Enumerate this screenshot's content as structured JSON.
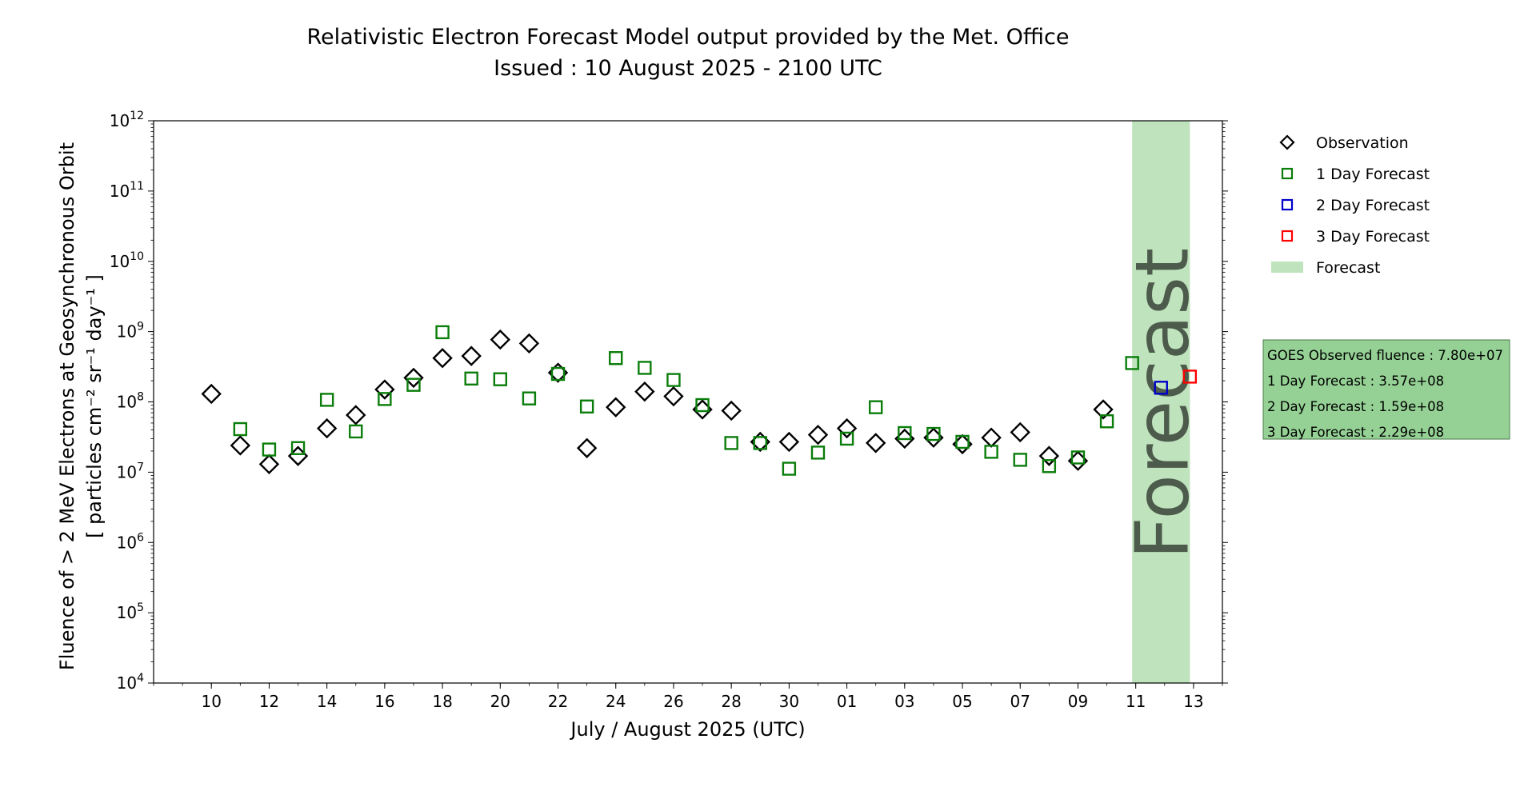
{
  "chart_data": {
    "type": "scatter",
    "title_lines": [
      "Relativistic Electron Forecast Model output provided by the Met. Office",
      "Issued : 10 August 2025 - 2100 UTC"
    ],
    "xlabel": "July / August 2025 (UTC)",
    "ylabel_line1": "Fluence of > 2 MeV Electrons at Geosynchronous Orbit",
    "ylabel_line2": "[ particles cm⁻² sr⁻¹ day⁻¹ ]",
    "y_scale": "log",
    "ylim": [
      10000.0,
      1000000000000.0
    ],
    "y_tick_exponents": [
      4,
      5,
      6,
      7,
      8,
      9,
      10,
      11,
      12
    ],
    "y_tick_base": "10",
    "xlim": [
      "2025-07-08",
      "2025-08-14"
    ],
    "x_ticks": [
      {
        "date": "2025-07-10",
        "label": "10"
      },
      {
        "date": "2025-07-12",
        "label": "12"
      },
      {
        "date": "2025-07-14",
        "label": "14"
      },
      {
        "date": "2025-07-16",
        "label": "16"
      },
      {
        "date": "2025-07-18",
        "label": "18"
      },
      {
        "date": "2025-07-20",
        "label": "20"
      },
      {
        "date": "2025-07-22",
        "label": "22"
      },
      {
        "date": "2025-07-24",
        "label": "24"
      },
      {
        "date": "2025-07-26",
        "label": "26"
      },
      {
        "date": "2025-07-28",
        "label": "28"
      },
      {
        "date": "2025-07-30",
        "label": "30"
      },
      {
        "date": "2025-08-01",
        "label": "01"
      },
      {
        "date": "2025-08-03",
        "label": "03"
      },
      {
        "date": "2025-08-05",
        "label": "05"
      },
      {
        "date": "2025-08-07",
        "label": "07"
      },
      {
        "date": "2025-08-09",
        "label": "09"
      },
      {
        "date": "2025-08-11",
        "label": "11"
      },
      {
        "date": "2025-08-13",
        "label": "13"
      }
    ],
    "forecast_band": {
      "start": "2025-08-10T21:00",
      "end": "2025-08-12T21:00",
      "label": "Forecast",
      "color": "#bfe3bc"
    },
    "legend_position": "right, outside plot",
    "series": [
      {
        "name": "Observation",
        "marker": "diamond",
        "color": "#000000",
        "points": [
          {
            "x": "2025-07-10",
            "y": 130000000.0
          },
          {
            "x": "2025-07-11",
            "y": 24000000.0
          },
          {
            "x": "2025-07-12",
            "y": 13000000.0
          },
          {
            "x": "2025-07-13",
            "y": 17000000.0
          },
          {
            "x": "2025-07-14",
            "y": 42000000.0
          },
          {
            "x": "2025-07-15",
            "y": 65000000.0
          },
          {
            "x": "2025-07-16",
            "y": 150000000.0
          },
          {
            "x": "2025-07-17",
            "y": 220000000.0
          },
          {
            "x": "2025-07-18",
            "y": 420000000.0
          },
          {
            "x": "2025-07-19",
            "y": 450000000.0
          },
          {
            "x": "2025-07-20",
            "y": 770000000.0
          },
          {
            "x": "2025-07-21",
            "y": 680000000.0
          },
          {
            "x": "2025-07-22",
            "y": 260000000.0
          },
          {
            "x": "2025-07-23",
            "y": 22000000.0
          },
          {
            "x": "2025-07-24",
            "y": 84000000.0
          },
          {
            "x": "2025-07-25",
            "y": 140000000.0
          },
          {
            "x": "2025-07-26",
            "y": 120000000.0
          },
          {
            "x": "2025-07-27",
            "y": 78000000.0
          },
          {
            "x": "2025-07-28",
            "y": 75000000.0
          },
          {
            "x": "2025-07-29",
            "y": 27000000.0
          },
          {
            "x": "2025-07-30",
            "y": 27000000.0
          },
          {
            "x": "2025-07-31",
            "y": 34000000.0
          },
          {
            "x": "2025-08-01",
            "y": 42000000.0
          },
          {
            "x": "2025-08-02",
            "y": 26000000.0
          },
          {
            "x": "2025-08-03",
            "y": 30000000.0
          },
          {
            "x": "2025-08-04",
            "y": 31000000.0
          },
          {
            "x": "2025-08-05",
            "y": 25000000.0
          },
          {
            "x": "2025-08-06",
            "y": 31000000.0
          },
          {
            "x": "2025-08-07",
            "y": 37000000.0
          },
          {
            "x": "2025-08-08",
            "y": 17000000.0
          },
          {
            "x": "2025-08-09",
            "y": 14500000.0
          },
          {
            "x": "2025-08-09T21:00",
            "y": 78000000.0
          }
        ]
      },
      {
        "name": "1 Day Forecast",
        "marker": "square",
        "color": "#0a7d0a",
        "points": [
          {
            "x": "2025-07-11",
            "y": 41000000.0
          },
          {
            "x": "2025-07-12",
            "y": 21000000.0
          },
          {
            "x": "2025-07-13",
            "y": 22000000.0
          },
          {
            "x": "2025-07-14",
            "y": 107000000.0
          },
          {
            "x": "2025-07-15",
            "y": 38000000.0
          },
          {
            "x": "2025-07-16",
            "y": 110000000.0
          },
          {
            "x": "2025-07-17",
            "y": 175000000.0
          },
          {
            "x": "2025-07-18",
            "y": 980000000.0
          },
          {
            "x": "2025-07-19",
            "y": 215000000.0
          },
          {
            "x": "2025-07-20",
            "y": 210000000.0
          },
          {
            "x": "2025-07-21",
            "y": 112000000.0
          },
          {
            "x": "2025-07-22",
            "y": 250000000.0
          },
          {
            "x": "2025-07-23",
            "y": 86000000.0
          },
          {
            "x": "2025-07-24",
            "y": 420000000.0
          },
          {
            "x": "2025-07-25",
            "y": 305000000.0
          },
          {
            "x": "2025-07-26",
            "y": 205000000.0
          },
          {
            "x": "2025-07-27",
            "y": 90000000.0
          },
          {
            "x": "2025-07-28",
            "y": 26000000.0
          },
          {
            "x": "2025-07-29",
            "y": 26000000.0
          },
          {
            "x": "2025-07-30",
            "y": 11200000.0
          },
          {
            "x": "2025-07-31",
            "y": 19000000.0
          },
          {
            "x": "2025-08-01",
            "y": 30000000.0
          },
          {
            "x": "2025-08-02",
            "y": 84000000.0
          },
          {
            "x": "2025-08-03",
            "y": 36000000.0
          },
          {
            "x": "2025-08-04",
            "y": 35000000.0
          },
          {
            "x": "2025-08-05",
            "y": 27000000.0
          },
          {
            "x": "2025-08-06",
            "y": 19500000.0
          },
          {
            "x": "2025-08-07",
            "y": 15000000.0
          },
          {
            "x": "2025-08-08",
            "y": 12200000.0
          },
          {
            "x": "2025-08-09",
            "y": 16200000.0
          },
          {
            "x": "2025-08-10",
            "y": 53000000.0
          },
          {
            "x": "2025-08-10T21:00",
            "y": 357000000.0
          }
        ]
      },
      {
        "name": "2 Day Forecast",
        "marker": "square",
        "color": "#0000c8",
        "points": [
          {
            "x": "2025-08-11T21:00",
            "y": 159000000.0
          }
        ]
      },
      {
        "name": "3 Day Forecast",
        "marker": "square",
        "color": "#ff0000",
        "points": [
          {
            "x": "2025-08-12T21:00",
            "y": 229000000.0
          }
        ]
      }
    ],
    "legend": [
      {
        "label": "Observation",
        "marker": "diamond",
        "color": "#000000"
      },
      {
        "label": "1 Day Forecast",
        "marker": "square",
        "color": "#0a7d0a"
      },
      {
        "label": "2 Day Forecast",
        "marker": "square",
        "color": "#0000c8"
      },
      {
        "label": "3 Day Forecast",
        "marker": "square",
        "color": "#ff0000"
      },
      {
        "label": "Forecast",
        "marker": "patch",
        "color": "#bfe3bc"
      }
    ],
    "info_box": {
      "background": "#95d195",
      "lines": [
        "GOES Observed fluence : 7.80e+07",
        "1 Day Forecast : 3.57e+08",
        "2 Day Forecast : 1.59e+08",
        "3 Day Forecast : 2.29e+08"
      ]
    }
  }
}
